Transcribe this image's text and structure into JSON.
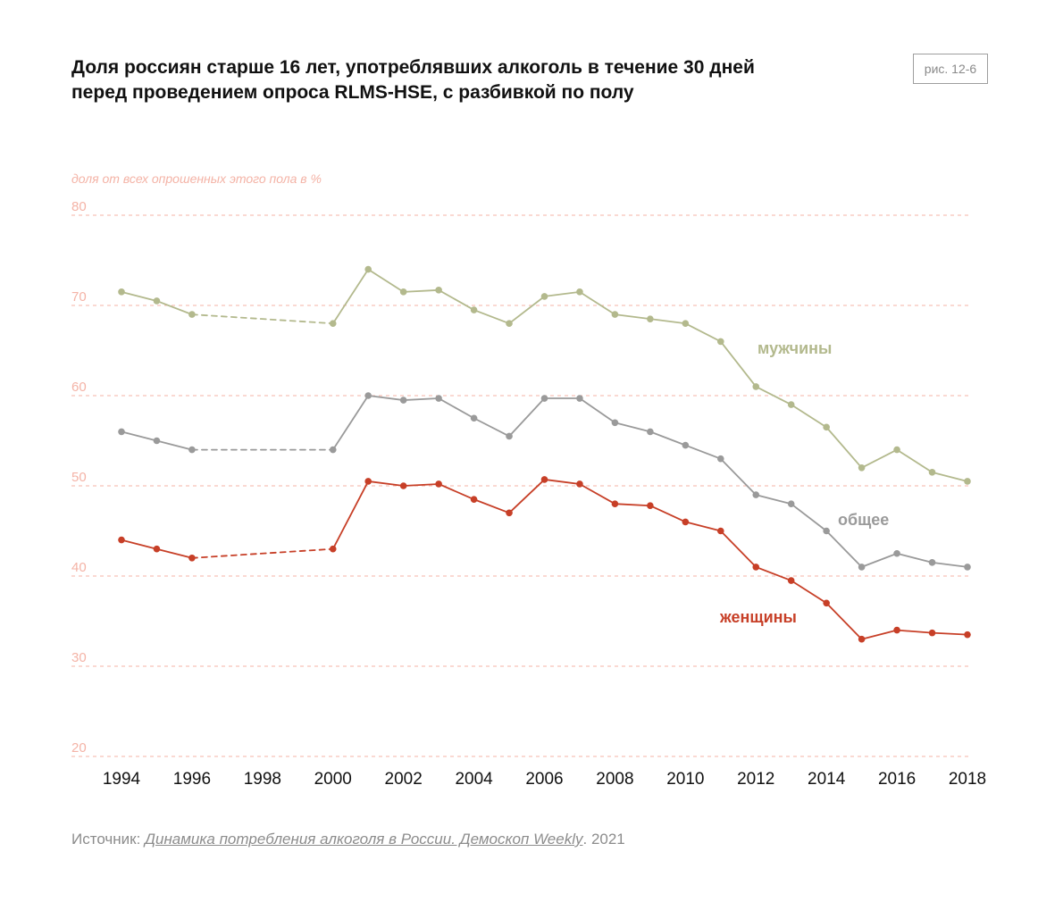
{
  "figure_label": "рис. 12-6",
  "title_lines": [
    "Доля россиян старше 16 лет, употреблявших алкоголь в течение 30 дней",
    "перед проведением опроса RLMS-HSE, с разбивкой по полу"
  ],
  "source": {
    "prefix": "Источник: ",
    "link_text": "Динамика потребления алкоголя в России. Демоскоп Weekly",
    "suffix": ". 2021"
  },
  "colors": {
    "men": "#b3b98d",
    "total": "#9a9a9a",
    "women": "#c73f27",
    "grid": "#f4b3a6",
    "axis_label": "#f4b3a6",
    "tick": "#111111"
  },
  "chart_data": {
    "type": "line",
    "ylabel": "доля от всех опрошенных этого пола в %",
    "xlabel": "",
    "ylim": [
      20,
      80
    ],
    "y_ticks": [
      80,
      70,
      60,
      50,
      40,
      30,
      20
    ],
    "xlim": [
      1994,
      2018
    ],
    "x_ticks": [
      1994,
      1996,
      1998,
      2000,
      2002,
      2004,
      2006,
      2008,
      2010,
      2012,
      2014,
      2016,
      2018
    ],
    "grid": true,
    "grid_style": "dashed horizontal",
    "legend": "inline labels near lines",
    "gap_segment": "1996-2000 dashed (no survey data)",
    "x": [
      1994,
      1995,
      1996,
      2000,
      2001,
      2002,
      2003,
      2004,
      2005,
      2006,
      2007,
      2008,
      2009,
      2010,
      2011,
      2012,
      2013,
      2014,
      2015,
      2016,
      2017,
      2018
    ],
    "series": [
      {
        "key": "men",
        "name": "мужчины",
        "values": [
          71.5,
          70.5,
          69,
          68,
          74,
          71.5,
          71.7,
          69.5,
          68,
          71,
          71.5,
          69,
          68.5,
          68,
          66,
          61,
          59,
          56.5,
          52,
          54,
          51.5,
          50.5
        ]
      },
      {
        "key": "total",
        "name": "общее",
        "values": [
          56,
          55,
          54,
          54,
          60,
          59.5,
          59.7,
          57.5,
          55.5,
          59.7,
          59.7,
          57,
          56,
          54.5,
          53,
          49,
          48,
          45,
          41,
          42.5,
          41.5,
          41
        ]
      },
      {
        "key": "women",
        "name": "женщины",
        "values": [
          44,
          43,
          42,
          43,
          50.5,
          50,
          50.2,
          48.5,
          47,
          50.7,
          50.2,
          48,
          47.8,
          46,
          45,
          41,
          39.5,
          37,
          33,
          34,
          33.7,
          33.5
        ]
      }
    ]
  }
}
